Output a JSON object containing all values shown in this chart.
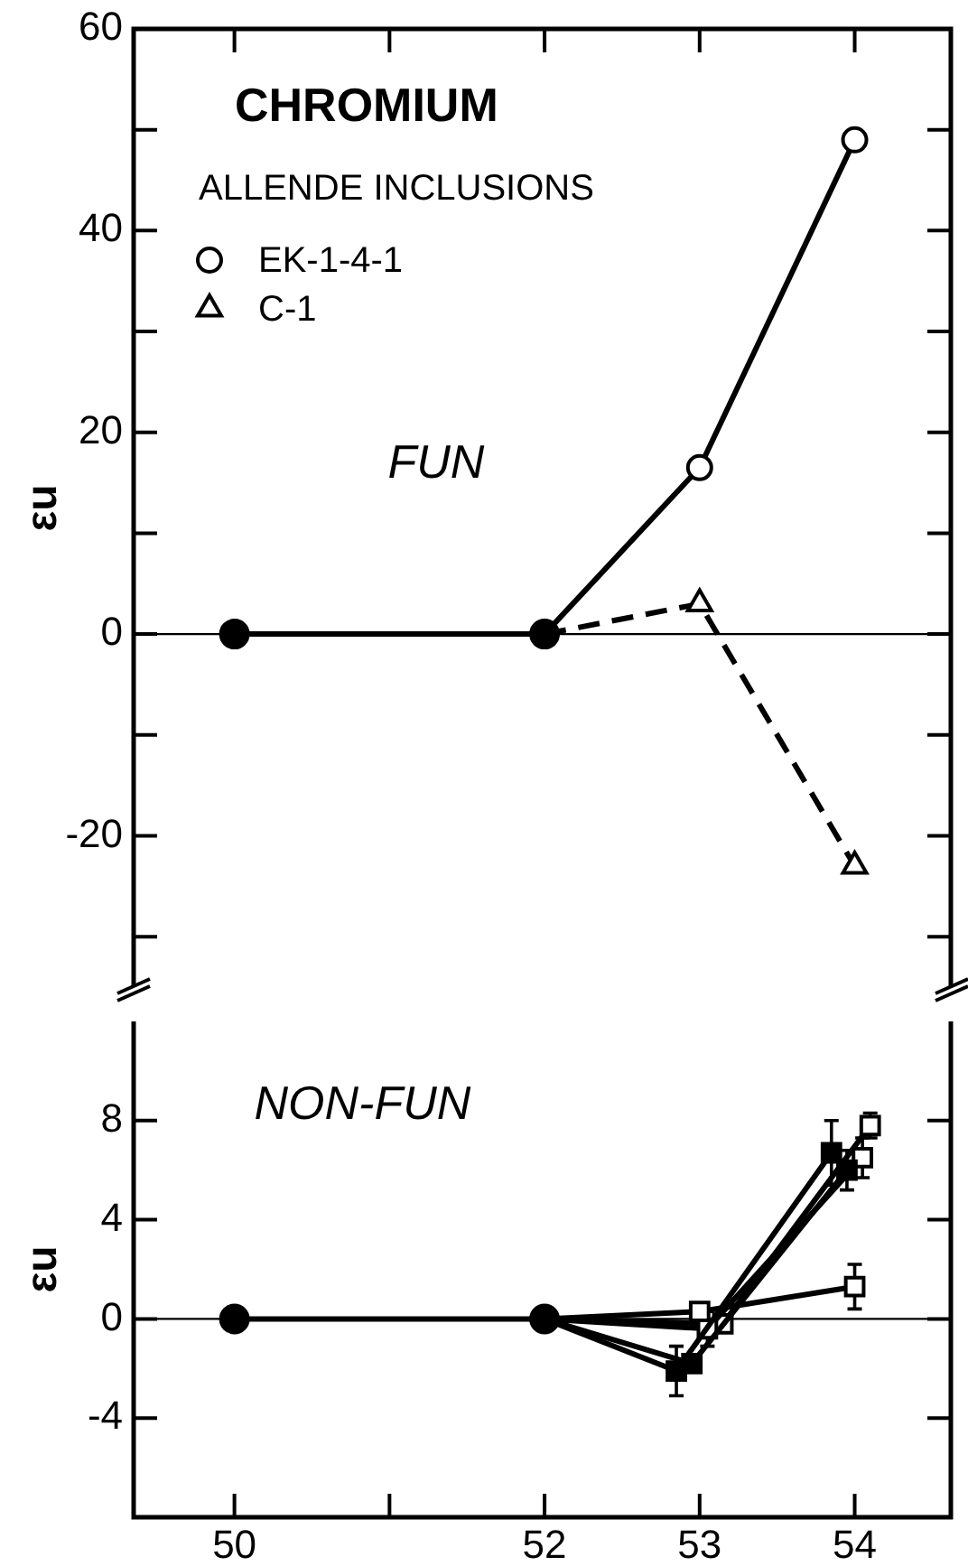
{
  "chart_data": [
    {
      "type": "line",
      "title": "CHROMIUM",
      "legend_title": "ALLENDE INCLUSIONS",
      "ylabel": "εu",
      "annotations": [
        "FUN"
      ],
      "xlim": [
        49.35,
        54.62
      ],
      "xticks": [
        50,
        {
          "value": 51,
          "label": null
        },
        52,
        53,
        54
      ],
      "ylim": [
        -35,
        60
      ],
      "yticks": [
        {
          "value": -30,
          "label": null
        },
        -20,
        {
          "value": -10,
          "label": null
        },
        0,
        {
          "value": 10,
          "label": null
        },
        20,
        {
          "value": 30,
          "label": null
        },
        40,
        {
          "value": 50,
          "label": null
        },
        60
      ],
      "tick_labels": "y",
      "legend": "top left",
      "ref_lines": [
        {
          "axis": "y",
          "value": 0
        }
      ],
      "series": [
        {
          "color": "#000000",
          "marker": "circle",
          "x": [
            50,
            52
          ],
          "values": [
            0,
            0
          ]
        },
        {
          "name": "EK-1-4-1",
          "color": "#000000",
          "marker": "circle",
          "x": [
            52,
            53,
            54
          ],
          "values": [
            0,
            16.5,
            49
          ]
        },
        {
          "name": "C-1",
          "color": "#000000",
          "marker": "triangle",
          "line_style": "dashed",
          "x": [
            52,
            53,
            54
          ],
          "values": [
            0,
            3,
            -23
          ]
        }
      ]
    },
    {
      "type": "line",
      "ylabel": "εu",
      "annotations": [
        "NON-FUN"
      ],
      "xlim": [
        49.35,
        54.62
      ],
      "xticks": [
        50,
        {
          "value": 51,
          "label": null
        },
        52,
        53,
        54
      ],
      "ylim": [
        -8,
        12
      ],
      "yticks": [
        -4,
        0,
        4,
        8
      ],
      "ref_lines": [
        {
          "axis": "y",
          "value": 0
        }
      ],
      "series": [
        {
          "color": "#000000",
          "marker": "circle",
          "x": [
            50,
            52
          ],
          "values": [
            0,
            0
          ]
        },
        {
          "color": "#000000",
          "marker": "square",
          "x": [
            52,
            52.85,
            53.85
          ],
          "values": [
            0,
            -2.1,
            6.7
          ],
          "errors": [
            null,
            1,
            1.3
          ]
        },
        {
          "color": "#000000",
          "marker": "square",
          "x": [
            52,
            52.95,
            53.95
          ],
          "values": [
            0,
            -1.8,
            6
          ],
          "errors": [
            null,
            null,
            0.8
          ]
        },
        {
          "color": "#000000",
          "marker": "square",
          "x": [
            52,
            53,
            54
          ],
          "values": [
            0,
            0.3,
            1.3
          ],
          "errors": [
            null,
            null,
            0.9
          ]
        },
        {
          "color": "#000000",
          "marker": "square",
          "x": [
            52,
            53.05,
            54.05
          ],
          "values": [
            0,
            -0.4,
            6.5
          ],
          "errors": [
            null,
            0.7,
            0.8
          ]
        },
        {
          "color": "#000000",
          "marker": "square",
          "x": [
            52,
            53.15,
            54.1
          ],
          "values": [
            0,
            -0.2,
            7.8
          ],
          "errors": [
            null,
            null,
            0.5
          ]
        }
      ]
    }
  ]
}
